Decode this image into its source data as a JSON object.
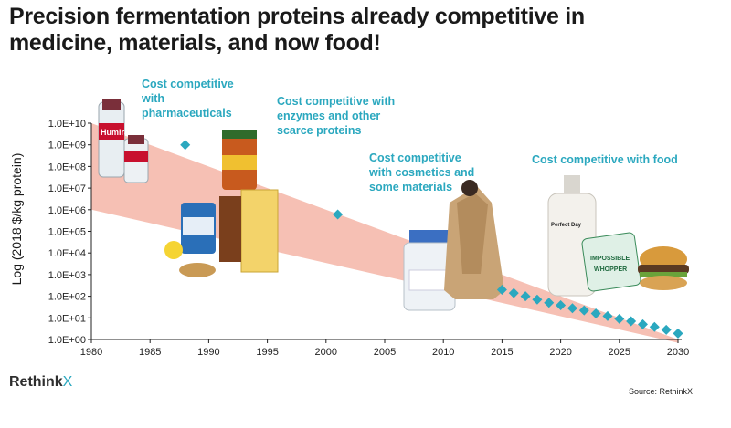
{
  "title": "Precision fermentation proteins already competitive in medicine, materials, and now food!",
  "source": "Source: RethinkX",
  "brand": {
    "name": "Rethink",
    "mark": "X"
  },
  "annotations": [
    {
      "id": "pharma",
      "lines": [
        "Cost competitive",
        "with",
        "pharmaceuticals"
      ]
    },
    {
      "id": "enzymes",
      "lines": [
        "Cost competitive with",
        "enzymes and other",
        "scarce proteins"
      ]
    },
    {
      "id": "cosmetics",
      "lines": [
        "Cost competitive",
        "with cosmetics and",
        "some materials"
      ]
    },
    {
      "id": "food",
      "lines": [
        "Cost competitive with food"
      ]
    }
  ],
  "product_labels": {
    "humira": "Humira",
    "perfect_day": "Perfect Day",
    "impossible": "IMPOSSIBLE",
    "whopper": "WHOPPER"
  },
  "colors": {
    "band": "#f6c0b4",
    "marker": "#2ba8bf",
    "annotation": "#2ba8bf",
    "axis": "#222222"
  },
  "chart_data": {
    "type": "scatter",
    "ylabel": "Log (2018 $/kg protein)",
    "xlabel": "",
    "y_scale": "log",
    "xlim": [
      1980,
      2030
    ],
    "ylim": [
      1,
      10000000000
    ],
    "x_ticks": [
      1980,
      1985,
      1990,
      1995,
      2000,
      2005,
      2010,
      2015,
      2020,
      2025,
      2030
    ],
    "y_ticks": [
      "1.0E+00",
      "1.0E+01",
      "1.0E+02",
      "1.0E+03",
      "1.0E+04",
      "1.0E+05",
      "1.0E+06",
      "1.0E+07",
      "1.0E+08",
      "1.0E+09",
      "1.0E+10"
    ],
    "band": {
      "upper": [
        [
          1980,
          10000000000
        ],
        [
          2030,
          1
        ]
      ],
      "lower": [
        [
          1980,
          1000000
        ],
        [
          2030,
          0.7
        ]
      ]
    },
    "series": [
      {
        "points": [
          [
            1988,
            1000000000
          ],
          [
            2001,
            600000
          ],
          [
            2015,
            200
          ],
          [
            2016,
            140
          ],
          [
            2017,
            100
          ],
          [
            2018,
            70
          ],
          [
            2019,
            50
          ],
          [
            2020,
            38
          ],
          [
            2021,
            28
          ],
          [
            2022,
            22
          ],
          [
            2023,
            16
          ],
          [
            2024,
            12
          ],
          [
            2025,
            9
          ],
          [
            2026,
            7
          ],
          [
            2027,
            5
          ],
          [
            2028,
            3.8
          ],
          [
            2029,
            2.8
          ],
          [
            2030,
            1.9
          ]
        ]
      }
    ]
  }
}
